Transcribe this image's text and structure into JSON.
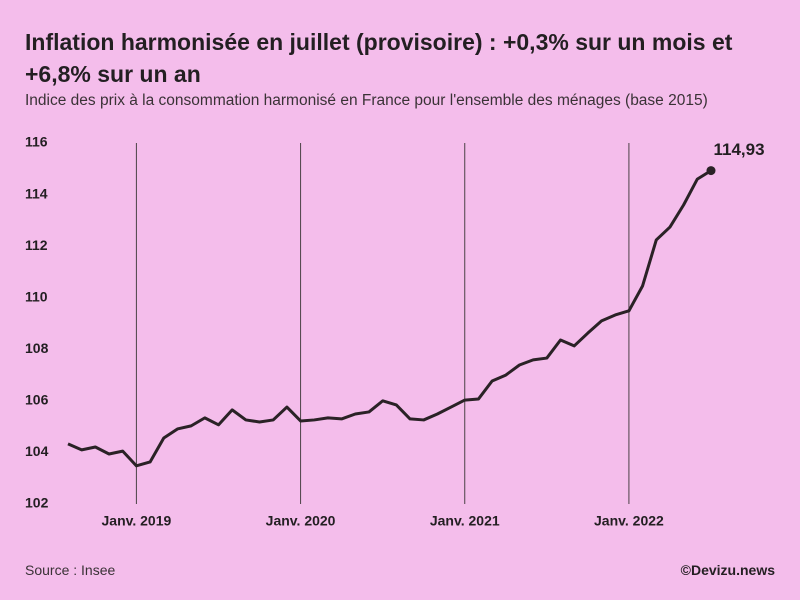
{
  "chart_data": {
    "type": "line",
    "title": "Inflation harmonisée en juillet (provisoire) : +0,3% sur un mois et +6,8% sur un an",
    "subtitle": "Indice des prix à la consommation harmonisé en France pour l'ensemble des ménages (base 2015)",
    "source": "Source : Insee",
    "credit": "©Devizu.news",
    "x": [
      "2018-08",
      "2018-09",
      "2018-10",
      "2018-11",
      "2018-12",
      "2019-01",
      "2019-02",
      "2019-03",
      "2019-04",
      "2019-05",
      "2019-06",
      "2019-07",
      "2019-08",
      "2019-09",
      "2019-10",
      "2019-11",
      "2019-12",
      "2020-01",
      "2020-02",
      "2020-03",
      "2020-04",
      "2020-05",
      "2020-06",
      "2020-07",
      "2020-08",
      "2020-09",
      "2020-10",
      "2020-11",
      "2020-12",
      "2021-01",
      "2021-02",
      "2021-03",
      "2021-04",
      "2021-05",
      "2021-06",
      "2021-07",
      "2021-08",
      "2021-09",
      "2021-10",
      "2021-11",
      "2021-12",
      "2022-01",
      "2022-02",
      "2022-03",
      "2022-04",
      "2022-05",
      "2022-06",
      "2022-07"
    ],
    "series": [
      {
        "color": "#2a2226",
        "values": [
          104.33,
          104.1,
          104.21,
          103.94,
          104.05,
          103.48,
          103.63,
          104.56,
          104.91,
          105.03,
          105.34,
          105.07,
          105.65,
          105.26,
          105.18,
          105.26,
          105.76,
          105.22,
          105.26,
          105.34,
          105.3,
          105.49,
          105.57,
          106.0,
          105.84,
          105.3,
          105.26,
          105.49,
          105.76,
          106.03,
          106.07,
          106.77,
          107.0,
          107.39,
          107.59,
          107.66,
          108.36,
          108.13,
          108.63,
          109.1,
          109.33,
          109.49,
          110.46,
          112.24,
          112.74,
          113.6,
          114.6,
          114.93
        ],
        "value_labels": [
          null,
          null,
          null,
          null,
          null,
          null,
          null,
          null,
          null,
          null,
          null,
          null,
          null,
          null,
          null,
          null,
          null,
          null,
          null,
          null,
          null,
          null,
          null,
          null,
          null,
          null,
          null,
          null,
          null,
          null,
          null,
          null,
          null,
          null,
          null,
          null,
          null,
          null,
          null,
          null,
          null,
          null,
          null,
          null,
          null,
          null,
          null,
          "114,93"
        ]
      }
    ],
    "xlim": [
      "2018-08",
      "2022-07"
    ],
    "xticks": [
      {
        "value": "2019-01",
        "label": "Janv. 2019"
      },
      {
        "value": "2020-01",
        "label": "Janv. 2020"
      },
      {
        "value": "2021-01",
        "label": "Janv. 2021"
      },
      {
        "value": "2022-01",
        "label": "Janv. 2022"
      }
    ],
    "ylim": [
      102,
      116
    ],
    "yticks": [
      102,
      104,
      106,
      108,
      110,
      112,
      114,
      116
    ],
    "grid": "x"
  }
}
